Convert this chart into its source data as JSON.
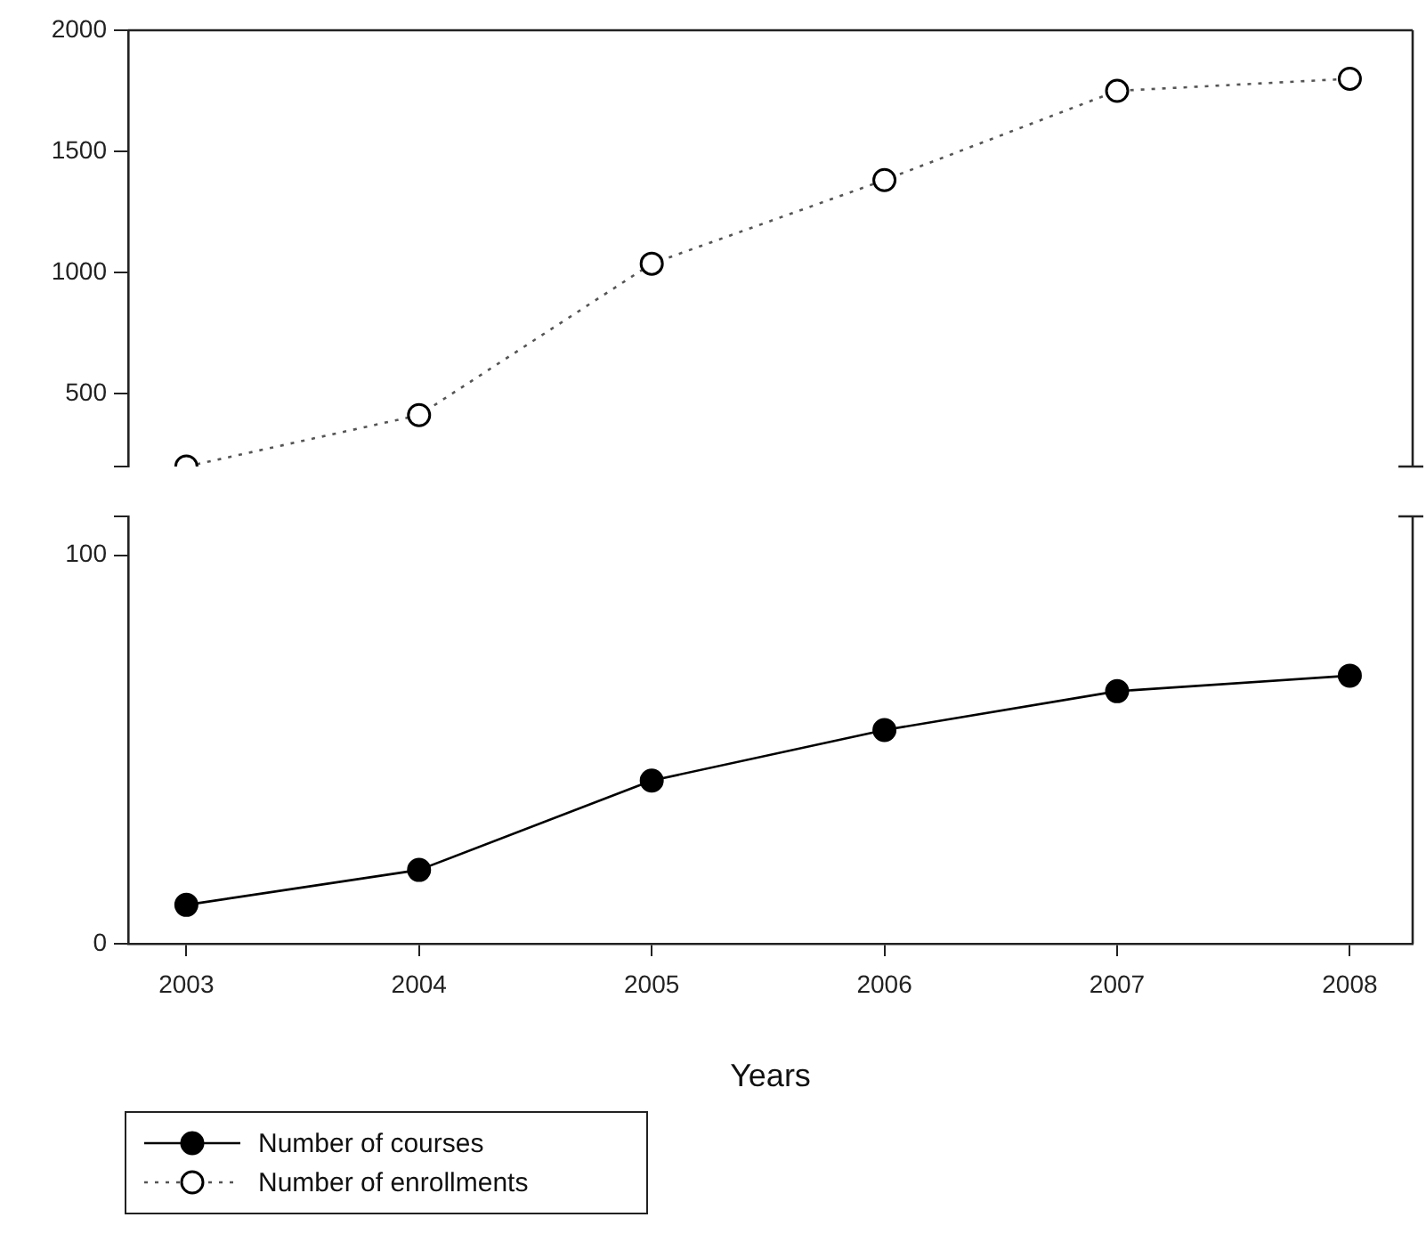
{
  "chart_data": [
    {
      "type": "line",
      "x": [
        2003,
        2004,
        2005,
        2006,
        2007,
        2008
      ],
      "xlim": [
        2002.75,
        2008.27
      ],
      "xticks": [
        2003,
        2004,
        2005,
        2006,
        2007,
        2008
      ],
      "ylim": [
        200,
        2000
      ],
      "yticks": [
        {
          "value": 200,
          "label": null
        },
        500,
        1000,
        1500,
        2000
      ],
      "tick_labels": "y",
      "grid": false,
      "legend": "bottom left",
      "marker": "circle",
      "series": [
        {
          "name": "Number of enrollments",
          "color": "#555555",
          "line_style": "dotted",
          "values": [
            200,
            412,
            1037,
            1382,
            1750,
            1800
          ]
        }
      ]
    },
    {
      "type": "line",
      "x": [
        2003,
        2004,
        2005,
        2006,
        2007,
        2008
      ],
      "xlim": [
        2002.75,
        2008.27
      ],
      "xticks": [
        2003,
        2004,
        2005,
        2006,
        2007,
        2008
      ],
      "ylim": [
        0,
        110
      ],
      "yticks": [
        0,
        100,
        {
          "value": 110,
          "label": null
        }
      ],
      "xlabel": "Years",
      "grid": false,
      "legend": "bottom left",
      "marker": "circle",
      "series": [
        {
          "name": "Number of courses",
          "color": "#000000",
          "line_style": "solid",
          "values": [
            10,
            19,
            42,
            55,
            65,
            69
          ]
        }
      ]
    }
  ]
}
